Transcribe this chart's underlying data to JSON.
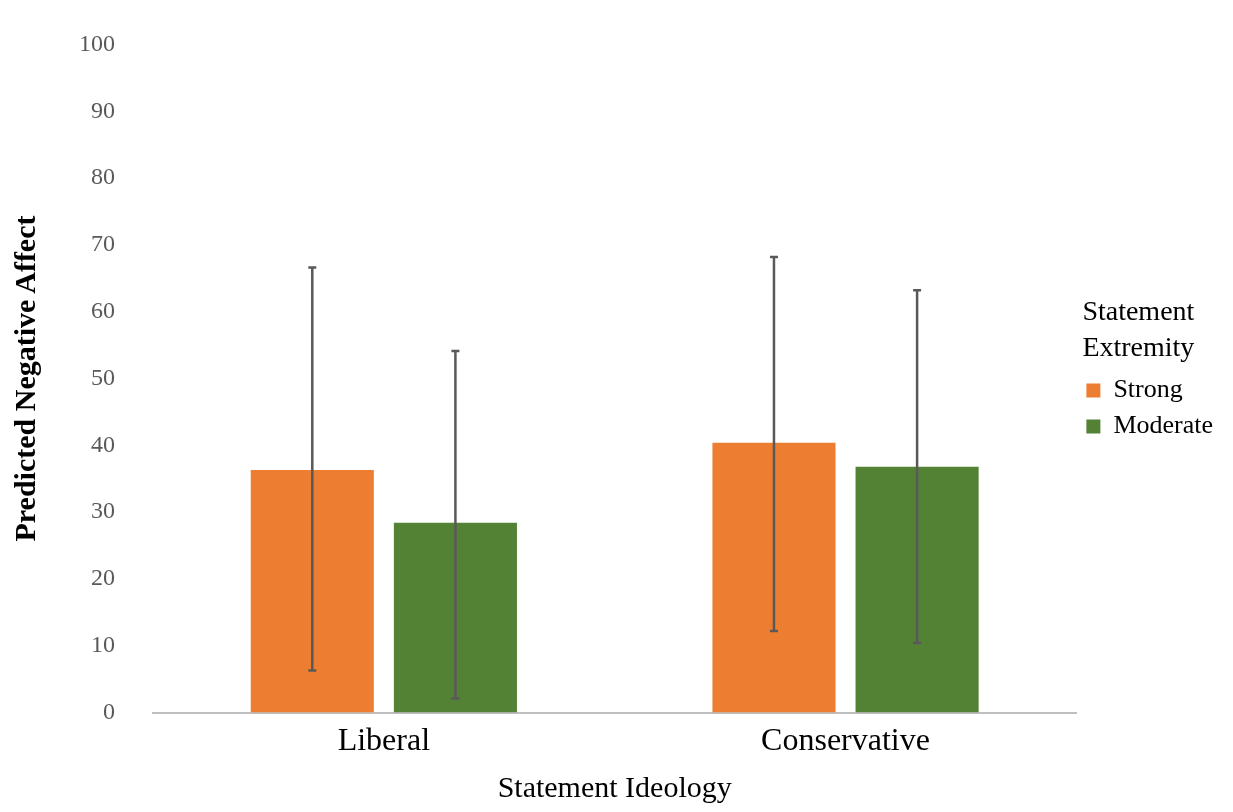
{
  "chart_data": {
    "type": "bar",
    "xlabel": "Statement Ideology",
    "ylabel": "Predicted Negative Affect",
    "legend_title": "Statement Extremity",
    "categories": [
      "Liberal",
      "Conservative"
    ],
    "series": [
      {
        "name": "Strong",
        "color": "#ed7d31",
        "values": [
          36.3,
          40.4
        ],
        "errors": [
          [
            6.3,
            66.6
          ],
          [
            12.2,
            68.2
          ]
        ]
      },
      {
        "name": "Moderate",
        "color": "#548235",
        "values": [
          28.4,
          36.8
        ],
        "errors": [
          [
            2.1,
            54.1
          ],
          [
            10.4,
            63.2
          ]
        ]
      }
    ],
    "ylim": [
      0,
      100
    ],
    "yticks": [
      0,
      10,
      20,
      30,
      40,
      50,
      60,
      70,
      80,
      90,
      100
    ],
    "grid": false,
    "legend": "right"
  }
}
